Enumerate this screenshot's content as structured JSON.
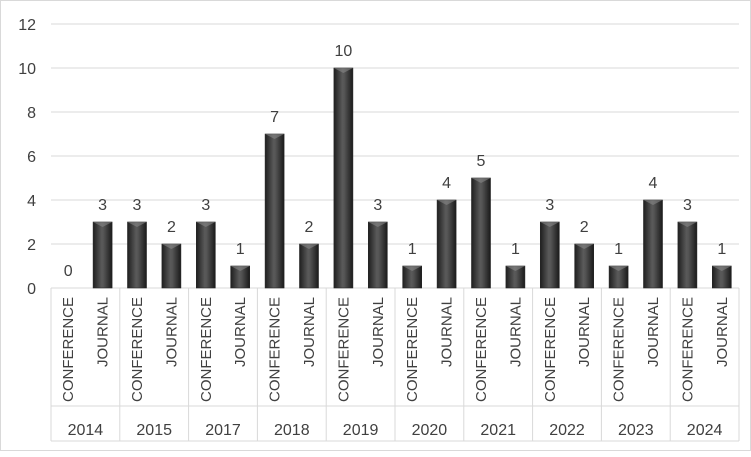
{
  "chart_data": {
    "type": "bar",
    "title": "",
    "xlabel": "",
    "ylabel": "",
    "ylim": [
      0,
      12
    ],
    "yticks": [
      0,
      2,
      4,
      6,
      8,
      10,
      12
    ],
    "grid": "horizontal",
    "legend": "none",
    "bar_color": "#3f3f3f",
    "groups": [
      {
        "year": "2014",
        "categories": [
          "CONFERENCE",
          "JOURNAL"
        ],
        "values": [
          0,
          3
        ]
      },
      {
        "year": "2015",
        "categories": [
          "CONFERENCE",
          "JOURNAL"
        ],
        "values": [
          3,
          2
        ]
      },
      {
        "year": "2017",
        "categories": [
          "CONFERENCE",
          "JOURNAL"
        ],
        "values": [
          3,
          1
        ]
      },
      {
        "year": "2018",
        "categories": [
          "CONFERENCE",
          "JOURNAL"
        ],
        "values": [
          7,
          2
        ]
      },
      {
        "year": "2019",
        "categories": [
          "CONFERENCE",
          "JOURNAL"
        ],
        "values": [
          10,
          3
        ]
      },
      {
        "year": "2020",
        "categories": [
          "CONFERENCE",
          "JOURNAL"
        ],
        "values": [
          1,
          4
        ]
      },
      {
        "year": "2021",
        "categories": [
          "CONFERENCE",
          "JOURNAL"
        ],
        "values": [
          5,
          1
        ]
      },
      {
        "year": "2022",
        "categories": [
          "CONFERENCE",
          "JOURNAL"
        ],
        "values": [
          3,
          2
        ]
      },
      {
        "year": "2023",
        "categories": [
          "CONFERENCE",
          "JOURNAL"
        ],
        "values": [
          1,
          4
        ]
      },
      {
        "year": "2024",
        "categories": [
          "CONFERENCE",
          "JOURNAL"
        ],
        "values": [
          3,
          1
        ]
      }
    ]
  }
}
